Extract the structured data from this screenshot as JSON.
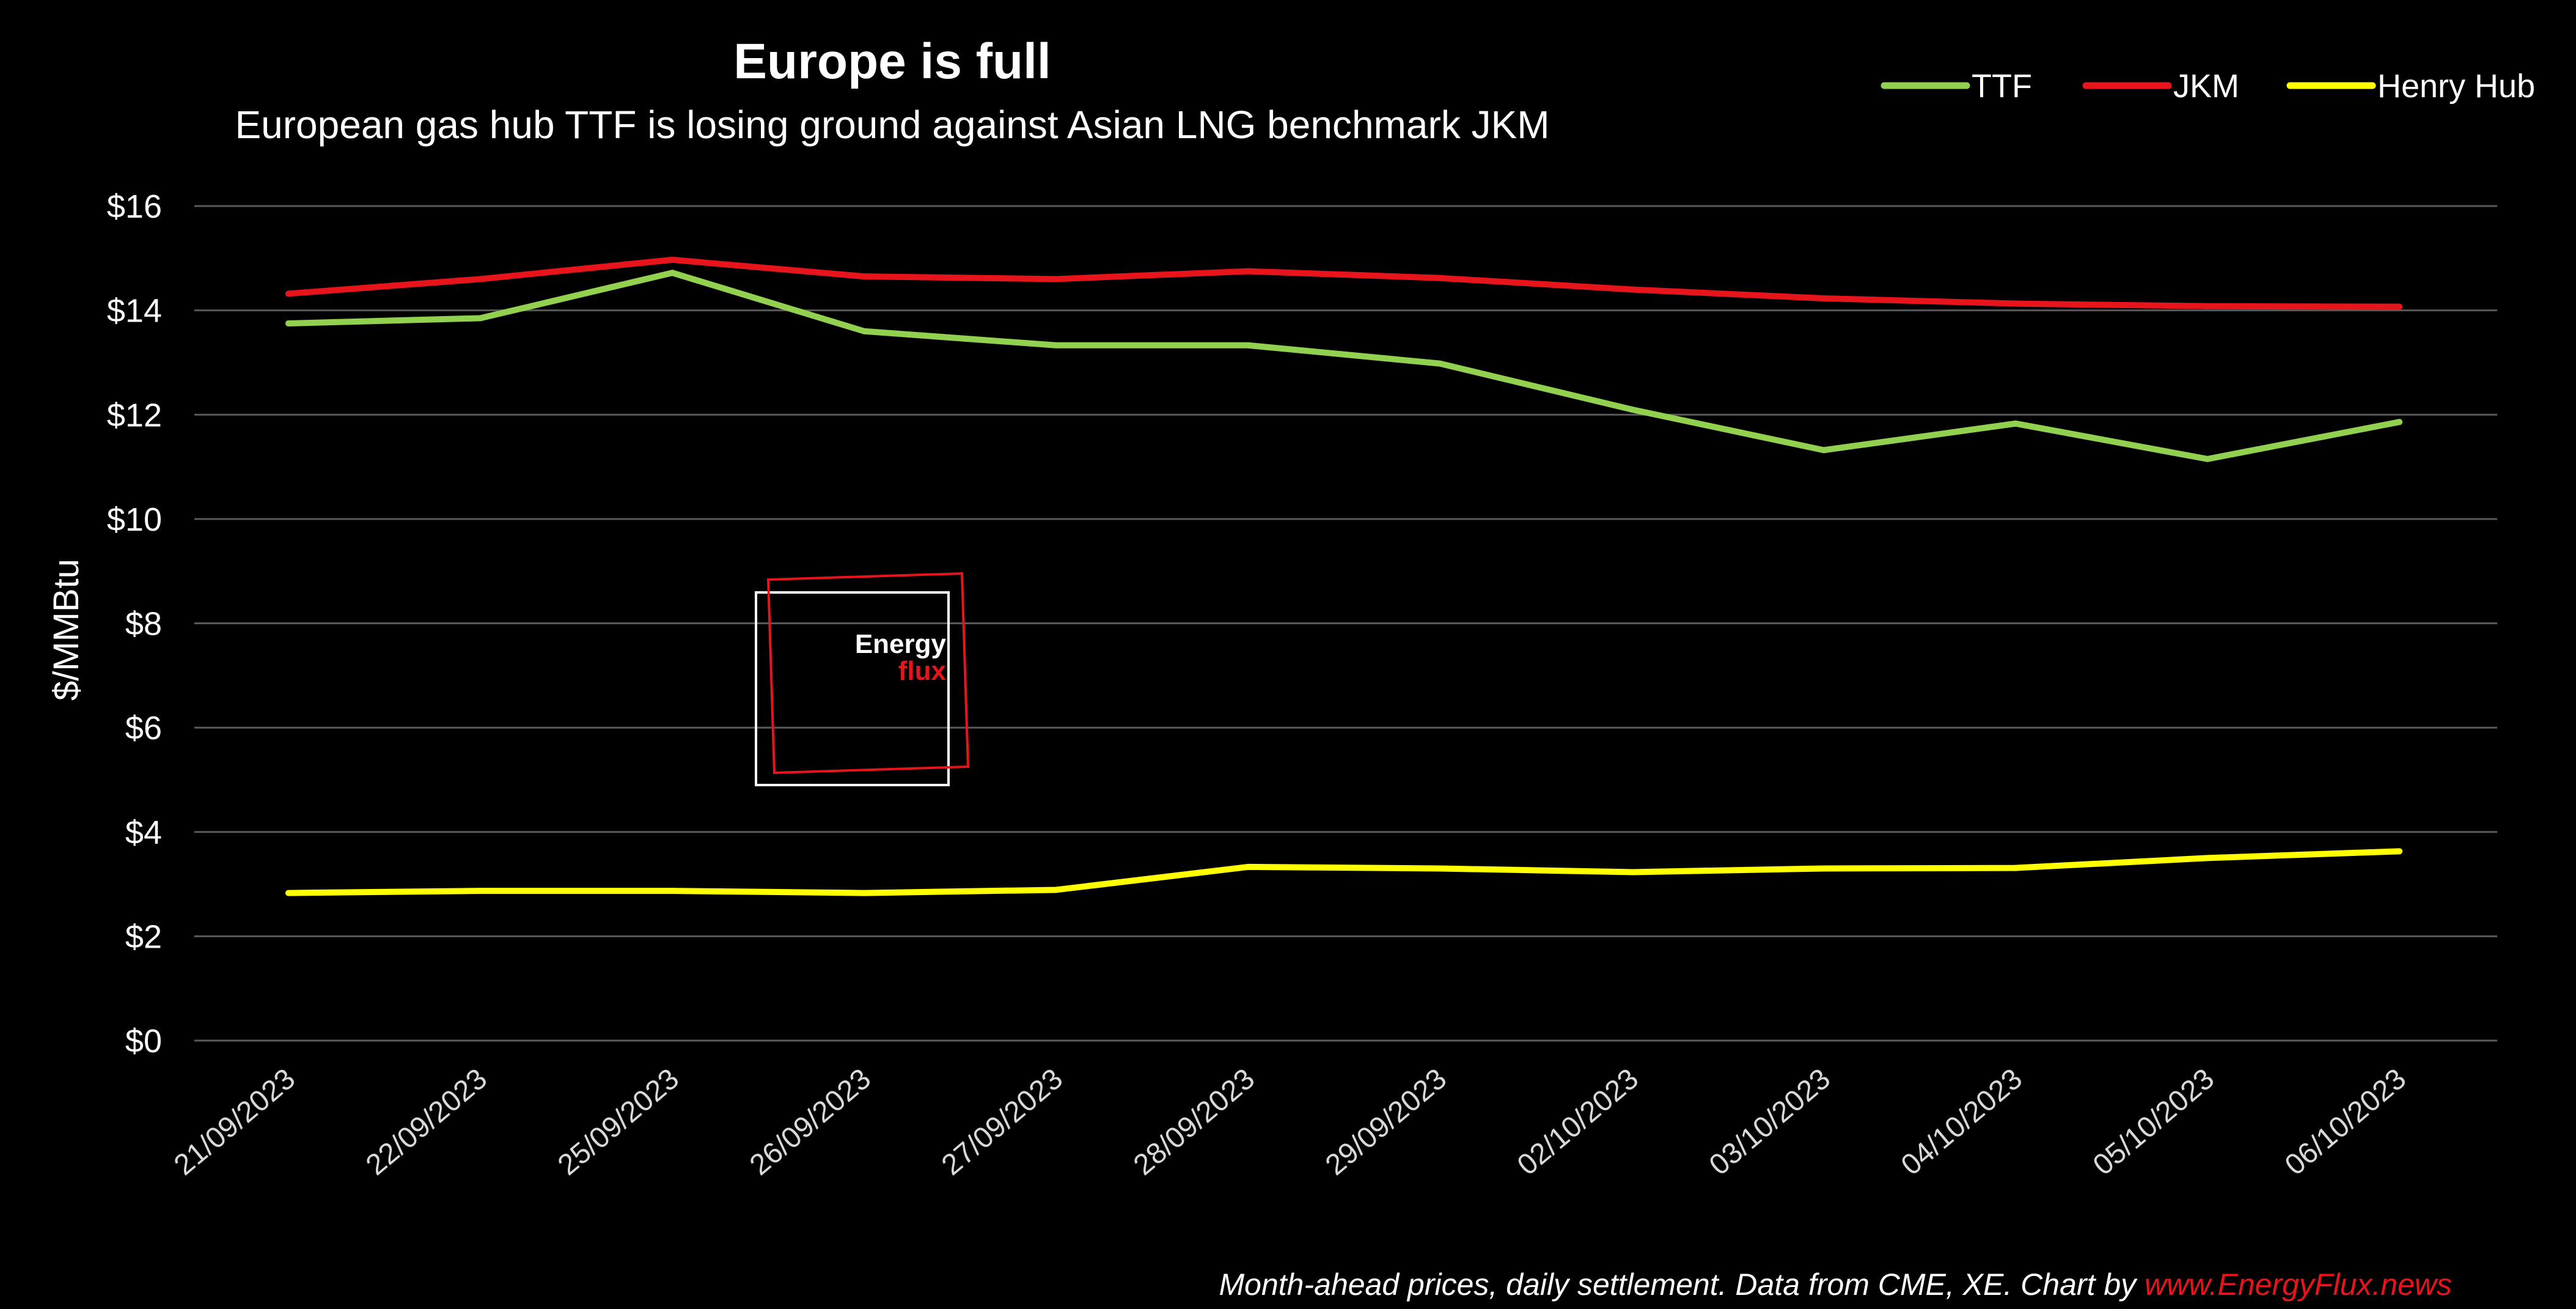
{
  "chart_data": {
    "type": "line",
    "title": "Europe is full",
    "subtitle": "European gas hub TTF is losing ground against Asian LNG benchmark JKM",
    "xlabel": "",
    "ylabel": "$/MMBtu",
    "ylim": [
      0,
      16
    ],
    "yticks": [
      "$0",
      "$2",
      "$4",
      "$6",
      "$8",
      "$10",
      "$12",
      "$14",
      "$16"
    ],
    "ytick_values": [
      0,
      2,
      4,
      6,
      8,
      10,
      12,
      14,
      16
    ],
    "grid": true,
    "legend_position": "top-right",
    "categories": [
      "21/09/2023",
      "22/09/2023",
      "25/09/2023",
      "26/09/2023",
      "27/09/2023",
      "28/09/2023",
      "29/09/2023",
      "02/10/2023",
      "03/10/2023",
      "04/10/2023",
      "05/10/2023",
      "06/10/2023"
    ],
    "series": [
      {
        "name": "TTF",
        "color": "#92d050",
        "values": [
          13.75,
          13.85,
          14.72,
          13.6,
          13.33,
          13.33,
          12.98,
          12.1,
          11.32,
          11.83,
          11.15,
          11.86
        ]
      },
      {
        "name": "JKM",
        "color": "#e8141c",
        "values": [
          14.32,
          14.6,
          14.97,
          14.65,
          14.6,
          14.75,
          14.62,
          14.4,
          14.23,
          14.13,
          14.08,
          14.07
        ]
      },
      {
        "name": "Henry Hub",
        "color": "#ffff00",
        "values": [
          2.83,
          2.87,
          2.87,
          2.83,
          2.89,
          3.33,
          3.3,
          3.23,
          3.3,
          3.31,
          3.5,
          3.63
        ]
      }
    ]
  },
  "logo": {
    "line1": "Energy",
    "line2": "flux",
    "line1_color": "#ffffff",
    "line2_color": "#e8141c",
    "frame_colors": [
      "#ffffff",
      "#e8141c"
    ]
  },
  "footer": {
    "text": "Month-ahead prices, daily settlement. Data from CME, XE. Chart by ",
    "link": "www.EnergyFlux.news"
  },
  "colors": {
    "background": "#000000",
    "grid": "#5a5a5a",
    "text": "#ffffff"
  }
}
